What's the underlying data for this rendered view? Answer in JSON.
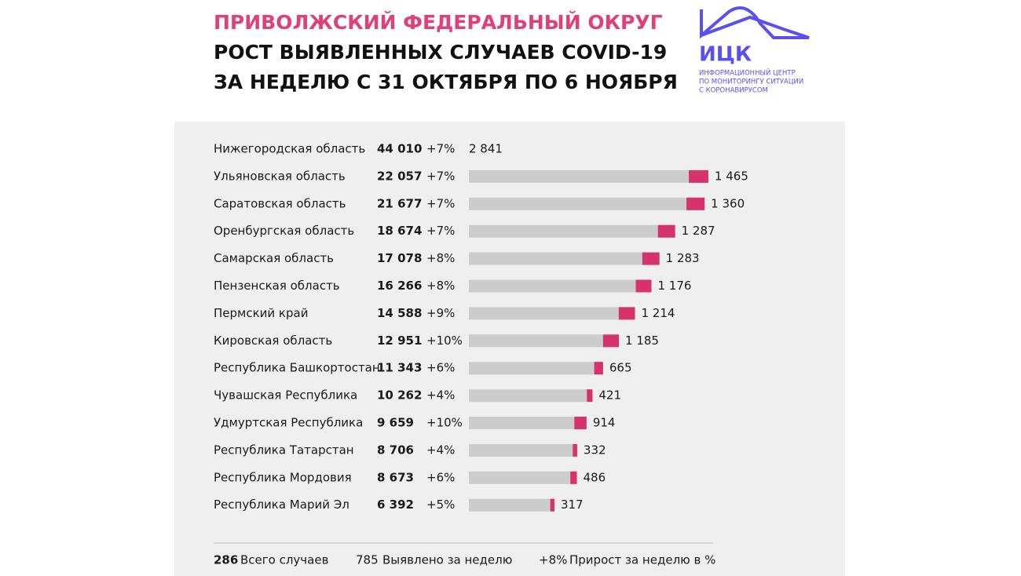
{
  "chart_data": {
    "type": "bar",
    "title": "ПРИВОЛЖСКИЙ ФЕДЕРАЛЬНЫЙ ОКРУГ",
    "subtitle": [
      "РОСТ ВЫЯВЛЕННЫХ СЛУЧАЕВ COVID-19",
      "ЗА НЕДЕЛЮ С 31 ОКТЯБРЯ ПО 6 НОЯБРЯ"
    ],
    "logo": {
      "name": "ИЦК",
      "caption": [
        "ИНФОРМАЦИОННЫЙ ЦЕНТР",
        "ПО МОНИТОРИНГУ СИТУАЦИИ",
        "С КОРОНАВИРУСОМ"
      ]
    },
    "categories": [
      "Нижегородская область",
      "Ульяновская область",
      "Саратовская область",
      "Оренбургская область",
      "Самарская область",
      "Пензенская область",
      "Пермский край",
      "Кировская область",
      "Республика Башкортостан",
      "Чувашская Республика",
      "Удмуртская Республика",
      "Республика Татарстан",
      "Республика Мордовия",
      "Республика Марий Эл"
    ],
    "series": [
      {
        "name": "Всего случаев",
        "color": "#cccccc",
        "values": [
          44010,
          22057,
          21677,
          18674,
          17078,
          16266,
          14588,
          12951,
          11343,
          10262,
          9659,
          8706,
          8673,
          6392
        ],
        "value_labels": [
          "44 010",
          "22 057",
          "21 677",
          "18 674",
          "17 078",
          "16 266",
          "14 588",
          "12 951",
          "11 343",
          "10 262",
          "9 659",
          "8 706",
          "8 673",
          "6 392"
        ]
      },
      {
        "name": "Прирост за неделю в %",
        "values": [
          7,
          7,
          7,
          7,
          8,
          8,
          9,
          10,
          6,
          4,
          10,
          4,
          6,
          5
        ],
        "value_labels": [
          "+7%",
          "+7%",
          "+7%",
          "+7%",
          "+8%",
          "+8%",
          "+9%",
          "+10%",
          "+6%",
          "+4%",
          "+10%",
          "+4%",
          "+6%",
          "+5%"
        ]
      },
      {
        "name": "Выявлено за неделю",
        "color": "#d6336c",
        "values": [
          2841,
          1465,
          1360,
          1287,
          1283,
          1176,
          1214,
          1185,
          665,
          421,
          914,
          332,
          486,
          317
        ],
        "value_labels": [
          "2 841",
          "1 465",
          "1 360",
          "1 287",
          "1 283",
          "1 176",
          "1 214",
          "1 185",
          "665",
          "421",
          "914",
          "332",
          "486",
          "317"
        ]
      }
    ],
    "legend_samples": [
      "286",
      "785",
      "+8%"
    ]
  }
}
